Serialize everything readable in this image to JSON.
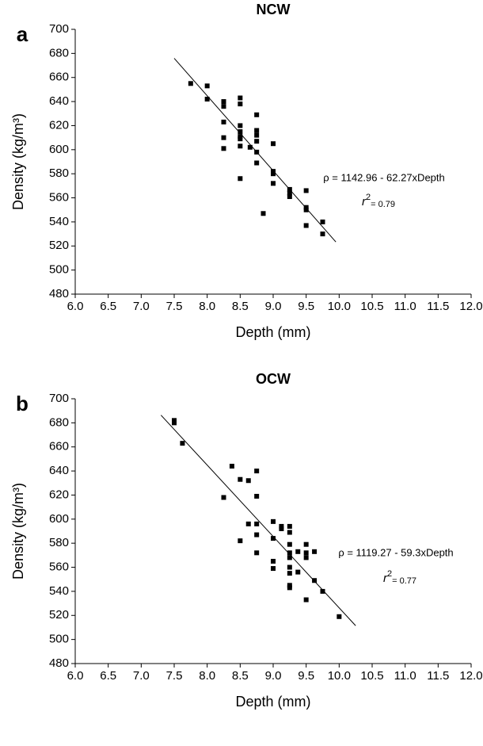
{
  "chart_data": [
    {
      "type": "scatter",
      "panel": "a",
      "title": "NCW",
      "xlabel": "Depth (mm)",
      "ylabel": "Density (kg/m³)",
      "color": "#000000",
      "equation": "ρ = 1142.96 - 62.27xDepth",
      "r_label": "r",
      "r_sup": "2",
      "r_value": "= 0.79",
      "fit": {
        "intercept": 1142.96,
        "slope": -62.27,
        "x_range": [
          7.5,
          9.95
        ]
      },
      "xlim": [
        6,
        12
      ],
      "ylim": [
        480,
        700
      ],
      "xticks": [
        {
          "value": 6,
          "label": "6.0"
        },
        {
          "value": 6.5,
          "label": "6.5"
        },
        {
          "value": 7,
          "label": "7.0"
        },
        {
          "value": 7.5,
          "label": "7.5"
        },
        {
          "value": 8,
          "label": "8.0"
        },
        {
          "value": 8.5,
          "label": "8.5"
        },
        {
          "value": 9,
          "label": "9.0"
        },
        {
          "value": 9.5,
          "label": "9.5"
        },
        {
          "value": 10,
          "label": "10.0"
        },
        {
          "value": 10.5,
          "label": "10.5"
        },
        {
          "value": 11,
          "label": "11.0"
        },
        {
          "value": 11.5,
          "label": "11.5"
        },
        {
          "value": 12,
          "label": "12.0"
        }
      ],
      "yticks": [
        480,
        500,
        520,
        540,
        560,
        580,
        600,
        620,
        640,
        660,
        680,
        700
      ],
      "x": [
        7.75,
        8.0,
        8.0,
        8.25,
        8.25,
        8.25,
        8.25,
        8.25,
        8.5,
        8.5,
        8.5,
        8.5,
        8.5,
        8.5,
        8.5,
        8.5,
        8.65,
        8.75,
        8.75,
        8.75,
        8.75,
        8.75,
        8.75,
        8.85,
        9.0,
        9.0,
        9.0,
        9.0,
        9.25,
        9.25,
        9.25,
        9.5,
        9.5,
        9.5,
        9.5,
        9.75,
        9.75
      ],
      "values": [
        655,
        653,
        642,
        640,
        636,
        623,
        610,
        601,
        643,
        638,
        620,
        615,
        611,
        609,
        603,
        576,
        602,
        629,
        616,
        612,
        607,
        598,
        589,
        547,
        605,
        582,
        580,
        572,
        567,
        564,
        561,
        566,
        552,
        550,
        537,
        540,
        530
      ]
    },
    {
      "type": "scatter",
      "panel": "b",
      "title": "OCW",
      "xlabel": "Depth (mm)",
      "ylabel": "Density (kg/m³)",
      "color": "#000000",
      "equation": "ρ = 1119.27 - 59.3xDepth",
      "r_label": "r",
      "r_sup": "2",
      "r_value": "= 0.77",
      "fit": {
        "intercept": 1119.27,
        "slope": -59.3,
        "x_range": [
          7.3,
          10.25
        ]
      },
      "xlim": [
        6,
        12
      ],
      "ylim": [
        480,
        700
      ],
      "xticks": [
        {
          "value": 6,
          "label": "6.0"
        },
        {
          "value": 6.5,
          "label": "6.5"
        },
        {
          "value": 7,
          "label": "7.0"
        },
        {
          "value": 7.5,
          "label": "7.5"
        },
        {
          "value": 8,
          "label": "8.0"
        },
        {
          "value": 8.5,
          "label": "8.5"
        },
        {
          "value": 9,
          "label": "9.0"
        },
        {
          "value": 9.5,
          "label": "9.5"
        },
        {
          "value": 10,
          "label": "10.0"
        },
        {
          "value": 10.5,
          "label": "10.5"
        },
        {
          "value": 11,
          "label": "11.0"
        },
        {
          "value": 11.5,
          "label": "11.5"
        },
        {
          "value": 12,
          "label": "12.0"
        }
      ],
      "yticks": [
        480,
        500,
        520,
        540,
        560,
        580,
        600,
        620,
        640,
        660,
        680,
        700
      ],
      "x": [
        7.5,
        7.5,
        7.625,
        8.25,
        8.375,
        8.5,
        8.5,
        8.625,
        8.625,
        8.75,
        8.75,
        8.75,
        8.75,
        8.75,
        9.0,
        9.0,
        9.0,
        9.0,
        9.125,
        9.125,
        9.25,
        9.25,
        9.25,
        9.25,
        9.25,
        9.25,
        9.25,
        9.25,
        9.25,
        9.375,
        9.375,
        9.5,
        9.5,
        9.5,
        9.5,
        9.625,
        9.625,
        9.75,
        10.0
      ],
      "values": [
        682,
        680,
        663,
        618,
        644,
        633,
        582,
        632,
        596,
        640,
        619,
        596,
        587,
        572,
        598,
        584,
        565,
        559,
        594,
        592,
        594,
        589,
        579,
        572,
        568,
        560,
        555,
        545,
        543,
        573,
        556,
        579,
        572,
        568,
        533,
        573,
        549,
        540,
        519
      ]
    }
  ]
}
